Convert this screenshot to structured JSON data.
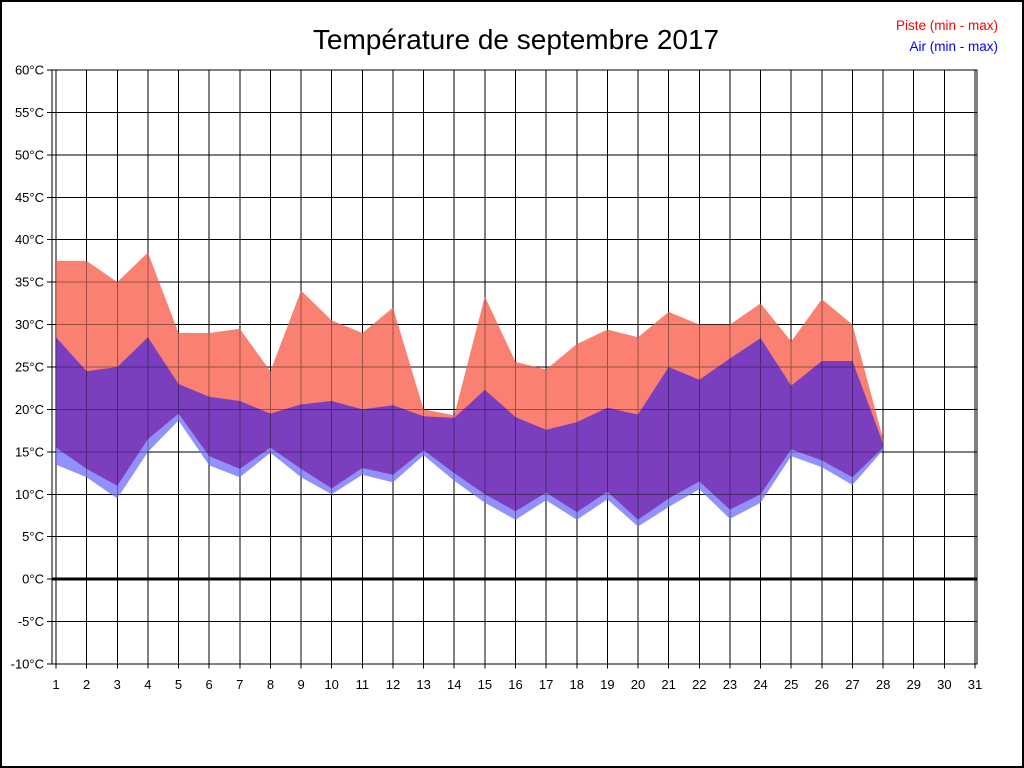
{
  "title": "Température de septembre 2017",
  "legend": {
    "items": [
      {
        "label": "Piste (min - max)",
        "color": "#ff0000"
      },
      {
        "label": "Air (min - max)",
        "color": "#0000ff"
      }
    ]
  },
  "colors": {
    "piste_band": "#fa8072",
    "air_band": "#9090ff",
    "overlap_band": "#7b3ebe",
    "gridline": "#000000",
    "zero_line": "#000000",
    "background": "#ffffff"
  },
  "chart_data": {
    "type": "area",
    "title": "Température de septembre 2017",
    "x": [
      1,
      2,
      3,
      4,
      5,
      6,
      7,
      8,
      9,
      10,
      11,
      12,
      13,
      14,
      15,
      16,
      17,
      18,
      19,
      20,
      21,
      22,
      23,
      24,
      25,
      26,
      27,
      28
    ],
    "x_axis": {
      "tick_labels": [
        "1",
        "2",
        "3",
        "4",
        "5",
        "6",
        "7",
        "8",
        "9",
        "10",
        "11",
        "12",
        "13",
        "14",
        "15",
        "16",
        "17",
        "18",
        "19",
        "20",
        "21",
        "22",
        "23",
        "24",
        "25",
        "26",
        "27",
        "28",
        "29",
        "30",
        "31"
      ],
      "min": 1,
      "max": 31
    },
    "y_axis": {
      "unit": "°C",
      "min": -10,
      "max": 60,
      "step": 5,
      "tick_labels": [
        "60°C",
        "55°C",
        "50°C",
        "45°C",
        "40°C",
        "35°C",
        "30°C",
        "25°C",
        "20°C",
        "15°C",
        "10°C",
        "5°C",
        "0°C",
        "-5°C",
        "-10°C"
      ]
    },
    "grid": true,
    "zero_line": 0,
    "legend_position": "top-right",
    "series": [
      {
        "name": "Piste (min - max)",
        "min": [
          15.5,
          13,
          11,
          16.5,
          19.5,
          14.5,
          13,
          15.5,
          13,
          10.7,
          13.1,
          12.3,
          15.2,
          12.5,
          10,
          8,
          10.2,
          7.9,
          10.3,
          7,
          9.5,
          11.5,
          8.2,
          10,
          15.3,
          14,
          12,
          15.5
        ],
        "max": [
          37.5,
          37.5,
          35,
          38.5,
          29,
          29,
          29.5,
          24.5,
          34,
          30.5,
          29,
          32,
          20,
          19.3,
          33.3,
          25.6,
          24.7,
          27.7,
          29.4,
          28.5,
          31.5,
          30,
          30,
          32.5,
          28,
          33,
          30,
          16.5
        ]
      },
      {
        "name": "Air (min - max)",
        "min": [
          13.5,
          12,
          9.5,
          15,
          18.7,
          13.4,
          12,
          14.9,
          12,
          10,
          12.3,
          11.4,
          14.6,
          11.6,
          9,
          7,
          9.3,
          7,
          9.4,
          6.2,
          8.5,
          10.6,
          7.1,
          9,
          14.5,
          13.2,
          11.1,
          15.2
        ],
        "max": [
          28.5,
          24.5,
          25,
          28.5,
          23,
          21.5,
          21,
          19.5,
          20.6,
          21,
          20,
          20.5,
          19.2,
          19,
          22.3,
          19.1,
          17.6,
          18.5,
          20.2,
          19.4,
          25,
          23.5,
          26,
          28.4,
          22.8,
          25.7,
          25.7,
          16
        ]
      }
    ]
  }
}
